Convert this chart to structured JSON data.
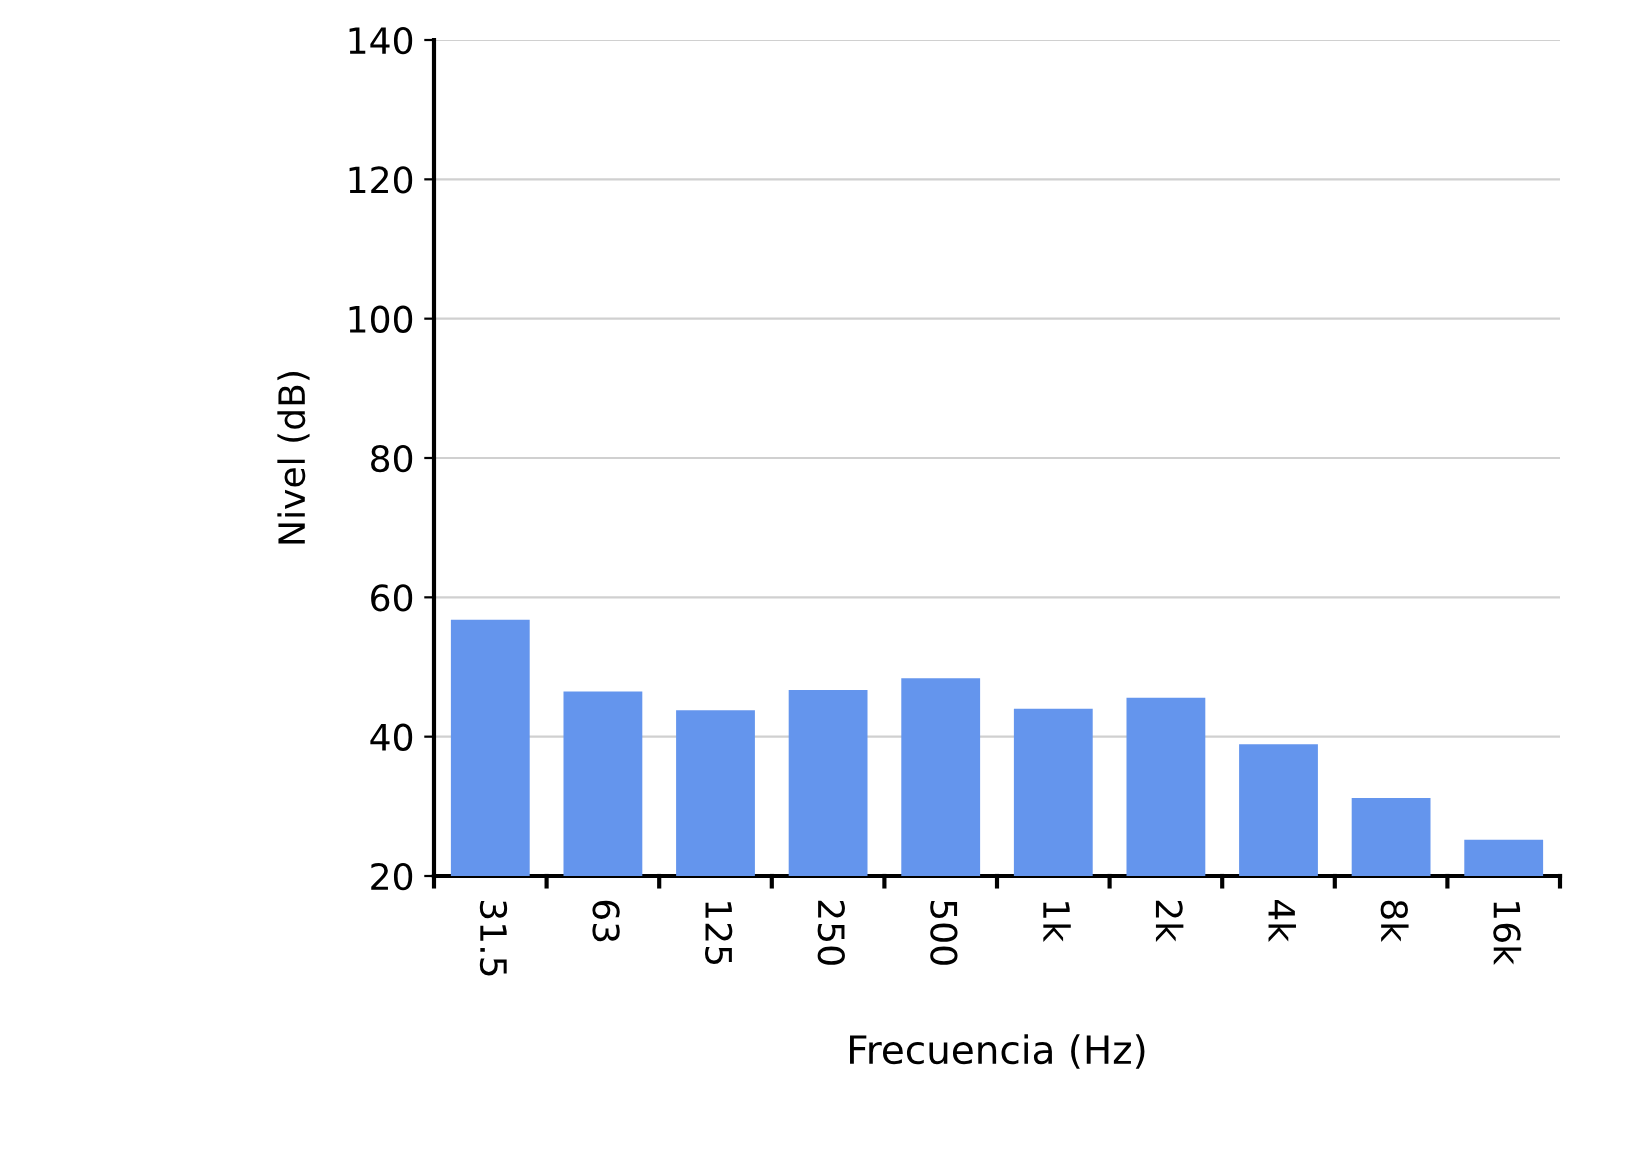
{
  "chart_data": {
    "type": "bar",
    "xlabel": "Frecuencia (Hz)",
    "ylabel": "Nivel (dB)",
    "categories": [
      "31.5",
      "63",
      "125",
      "250",
      "500",
      "1k",
      "2k",
      "4k",
      "8k",
      "16k"
    ],
    "values": [
      56.8,
      46.5,
      43.8,
      46.7,
      48.4,
      44.0,
      45.6,
      38.9,
      31.2,
      25.2
    ],
    "color": "#6495ed",
    "ylim": [
      20,
      140
    ],
    "yticks": [
      20,
      40,
      60,
      80,
      100,
      120,
      140
    ],
    "grid": "y",
    "legend": false
  }
}
